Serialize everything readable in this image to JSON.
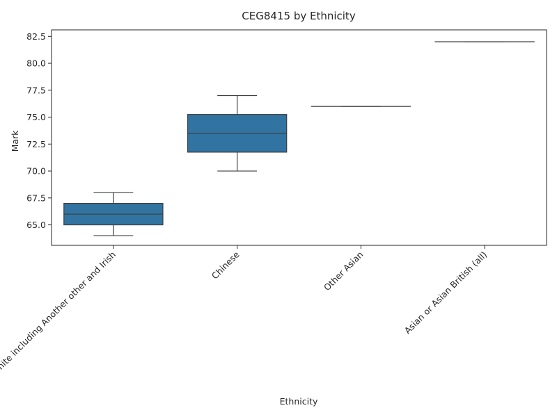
{
  "chart_data": {
    "type": "box",
    "title": "CEG8415 by Ethnicity",
    "xlabel": "Ethnicity",
    "ylabel": "Mark",
    "categories": [
      "White including Another other and Irish",
      "Chinese",
      "Other Asian",
      "Asian or Asian British (all)"
    ],
    "boxes": [
      {
        "category": "White including Another other and Irish",
        "whislo": 64,
        "q1": 65,
        "med": 66,
        "q3": 67,
        "whishi": 68
      },
      {
        "category": "Chinese",
        "whislo": 70,
        "q1": 71.75,
        "med": 73.5,
        "q3": 75.25,
        "whishi": 77
      },
      {
        "category": "Other Asian",
        "whislo": 76,
        "q1": 76,
        "med": 76,
        "q3": 76,
        "whishi": 76
      },
      {
        "category": "Asian or Asian British (all)",
        "whislo": 82,
        "q1": 82,
        "med": 82,
        "q3": 82,
        "whishi": 82
      }
    ],
    "ylim": [
      63.1,
      83.1
    ],
    "yticks": [
      "65.0",
      "67.5",
      "70.0",
      "72.5",
      "75.0",
      "77.5",
      "80.0",
      "82.5"
    ],
    "grid": false,
    "box_color": "#3274a1"
  }
}
